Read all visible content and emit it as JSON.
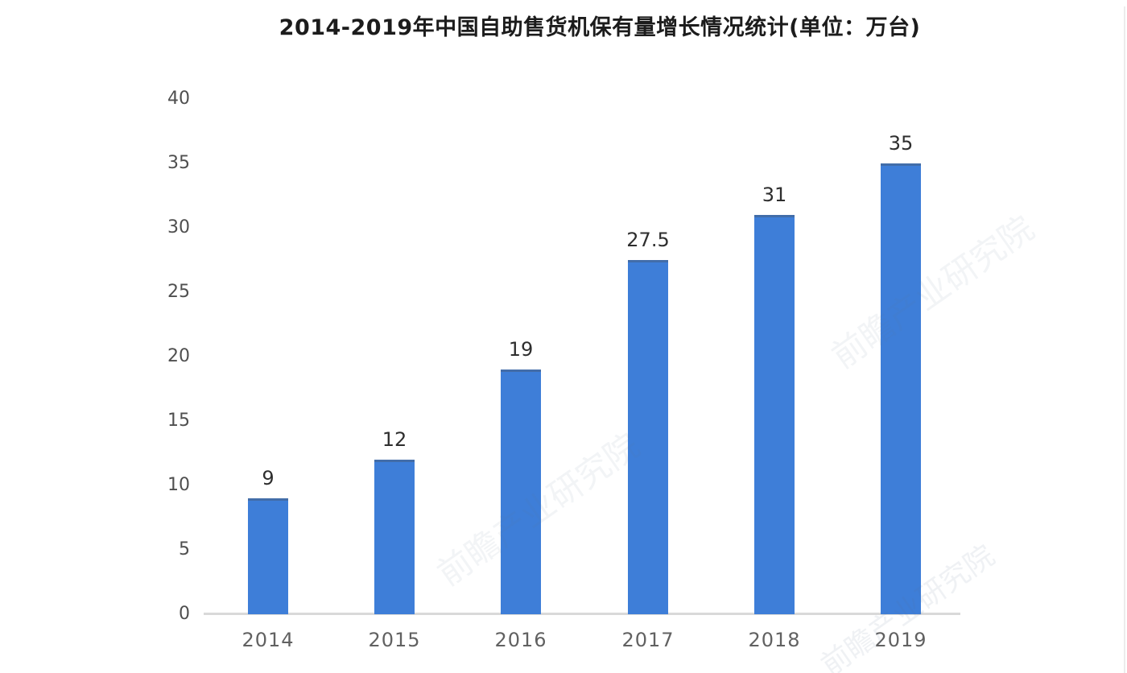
{
  "chart_data": {
    "type": "bar",
    "title": "2014-2019年中国自助售货机保有量增长情况统计(单位：万台)",
    "unit_label": "万台",
    "categories": [
      "2014",
      "2015",
      "2016",
      "2017",
      "2018",
      "2019"
    ],
    "values": [
      9,
      12,
      19,
      27.5,
      31,
      35
    ],
    "xlabel": "",
    "ylabel": "",
    "ylim": [
      0,
      40
    ],
    "yticks": [
      0,
      5,
      10,
      15,
      20,
      25,
      30,
      35,
      40
    ],
    "grid": false,
    "legend_position": "none",
    "bar_color": "#3e7ed8",
    "value_label_color": "#2e2e2e",
    "axis_tick_color": "#4f4f4f",
    "baseline_color": "#d9d9d9"
  },
  "watermark": {
    "text": "前瞻产业研究院"
  }
}
